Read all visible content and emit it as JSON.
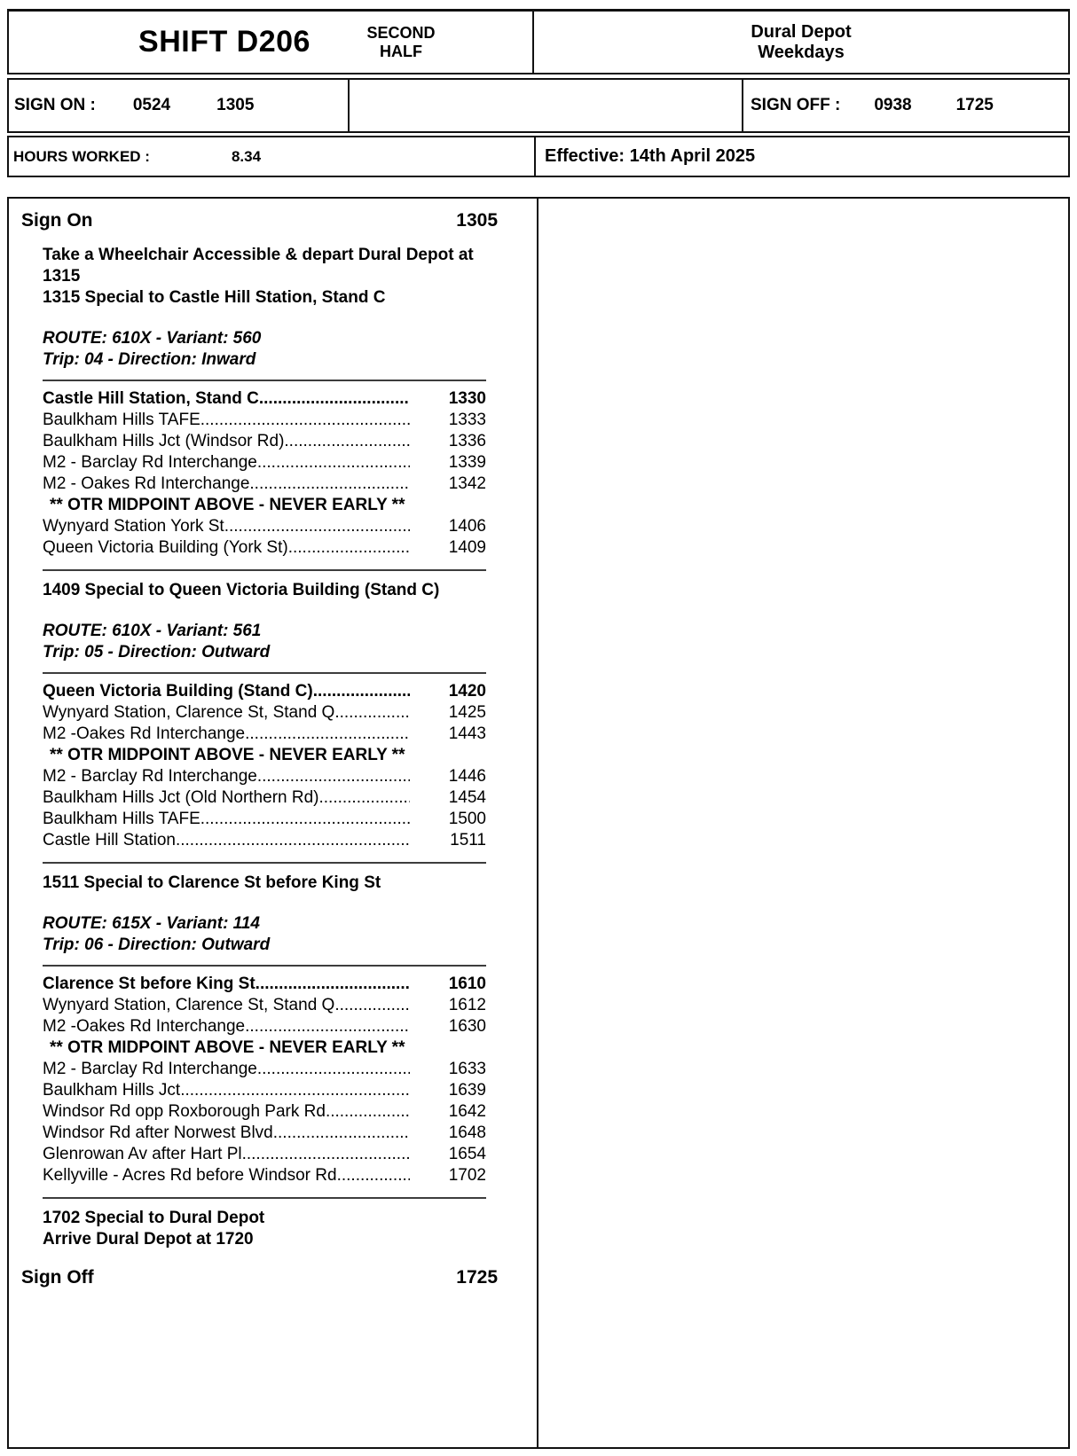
{
  "header": {
    "shift_title": "SHIFT D206",
    "half_label": "SECOND HALF",
    "depot_line1": "Dural Depot",
    "depot_line2": "Weekdays",
    "sign_on_label": "SIGN ON :",
    "sign_on_times": [
      "0524",
      "1305"
    ],
    "sign_off_label": "SIGN OFF :",
    "sign_off_times": [
      "0938",
      "1725"
    ],
    "hours_worked_label": "HOURS WORKED :",
    "hours_worked_value": "8.34",
    "effective_text": "Effective: 14th April 2025"
  },
  "duty": {
    "sign_on_label": "Sign On",
    "sign_on_time": "1305",
    "intro_lines": [
      "Take a Wheelchair Accessible & depart Dural Depot at 1315",
      "1315 Special to Castle Hill Station, Stand C"
    ],
    "trips": [
      {
        "route_line": "ROUTE: 610X - Variant: 560",
        "trip_line": "Trip: 04 - Direction: Inward",
        "stops": [
          {
            "name": "Castle Hill Station, Stand C",
            "time": "1330",
            "bold": true
          },
          {
            "name": "Baulkham Hills TAFE",
            "time": "1333"
          },
          {
            "name": "Baulkham Hills Jct (Windsor Rd)",
            "time": "1336"
          },
          {
            "name": "M2 - Barclay Rd Interchange",
            "time": "1339"
          },
          {
            "name": "M2 - Oakes Rd Interchange",
            "time": "1342"
          },
          {
            "note": "** OTR MIDPOINT ABOVE - NEVER EARLY **"
          },
          {
            "name": "Wynyard Station York St",
            "time": "1406"
          },
          {
            "name": "Queen Victoria Building (York St)",
            "time": "1409"
          }
        ],
        "after_line": "1409 Special to Queen Victoria Building (Stand C)"
      },
      {
        "route_line": "ROUTE: 610X - Variant: 561",
        "trip_line": "Trip: 05 - Direction: Outward",
        "stops": [
          {
            "name": "Queen Victoria Building (Stand C)",
            "time": "1420",
            "bold": true
          },
          {
            "name": "Wynyard Station, Clarence St, Stand Q",
            "time": "1425"
          },
          {
            "name": "M2 -Oakes Rd Interchange",
            "time": "1443"
          },
          {
            "note": "** OTR MIDPOINT ABOVE - NEVER EARLY **"
          },
          {
            "name": "M2 - Barclay Rd Interchange",
            "time": "1446"
          },
          {
            "name": "Baulkham Hills Jct (Old Northern Rd)",
            "time": "1454"
          },
          {
            "name": "Baulkham Hills TAFE",
            "time": "1500"
          },
          {
            "name": "Castle Hill Station",
            "time": "1511"
          }
        ],
        "after_line": "1511 Special to Clarence St before King St"
      },
      {
        "route_line": "ROUTE: 615X - Variant: 114",
        "trip_line": "Trip: 06 - Direction: Outward",
        "stops": [
          {
            "name": "Clarence St before King St",
            "time": "1610",
            "bold": true
          },
          {
            "name": "Wynyard Station, Clarence St, Stand Q",
            "time": "1612"
          },
          {
            "name": "M2 -Oakes Rd Interchange",
            "time": "1630"
          },
          {
            "note": "** OTR MIDPOINT ABOVE - NEVER EARLY **"
          },
          {
            "name": "M2 - Barclay Rd Interchange",
            "time": "1633"
          },
          {
            "name": "Baulkham Hills Jct",
            "time": "1639"
          },
          {
            "name": "Windsor Rd opp Roxborough Park Rd",
            "time": "1642"
          },
          {
            "name": "Windsor Rd after Norwest Blvd",
            "time": "1648"
          },
          {
            "name": "Glenrowan Av after Hart Pl",
            "time": "1654"
          },
          {
            "name": "Kellyville - Acres Rd before Windsor Rd",
            "time": "1702"
          }
        ]
      }
    ],
    "closing_lines": [
      "1702 Special to Dural Depot",
      "Arrive Dural Depot at 1720"
    ],
    "sign_off_label": "Sign Off",
    "sign_off_time": "1725"
  }
}
